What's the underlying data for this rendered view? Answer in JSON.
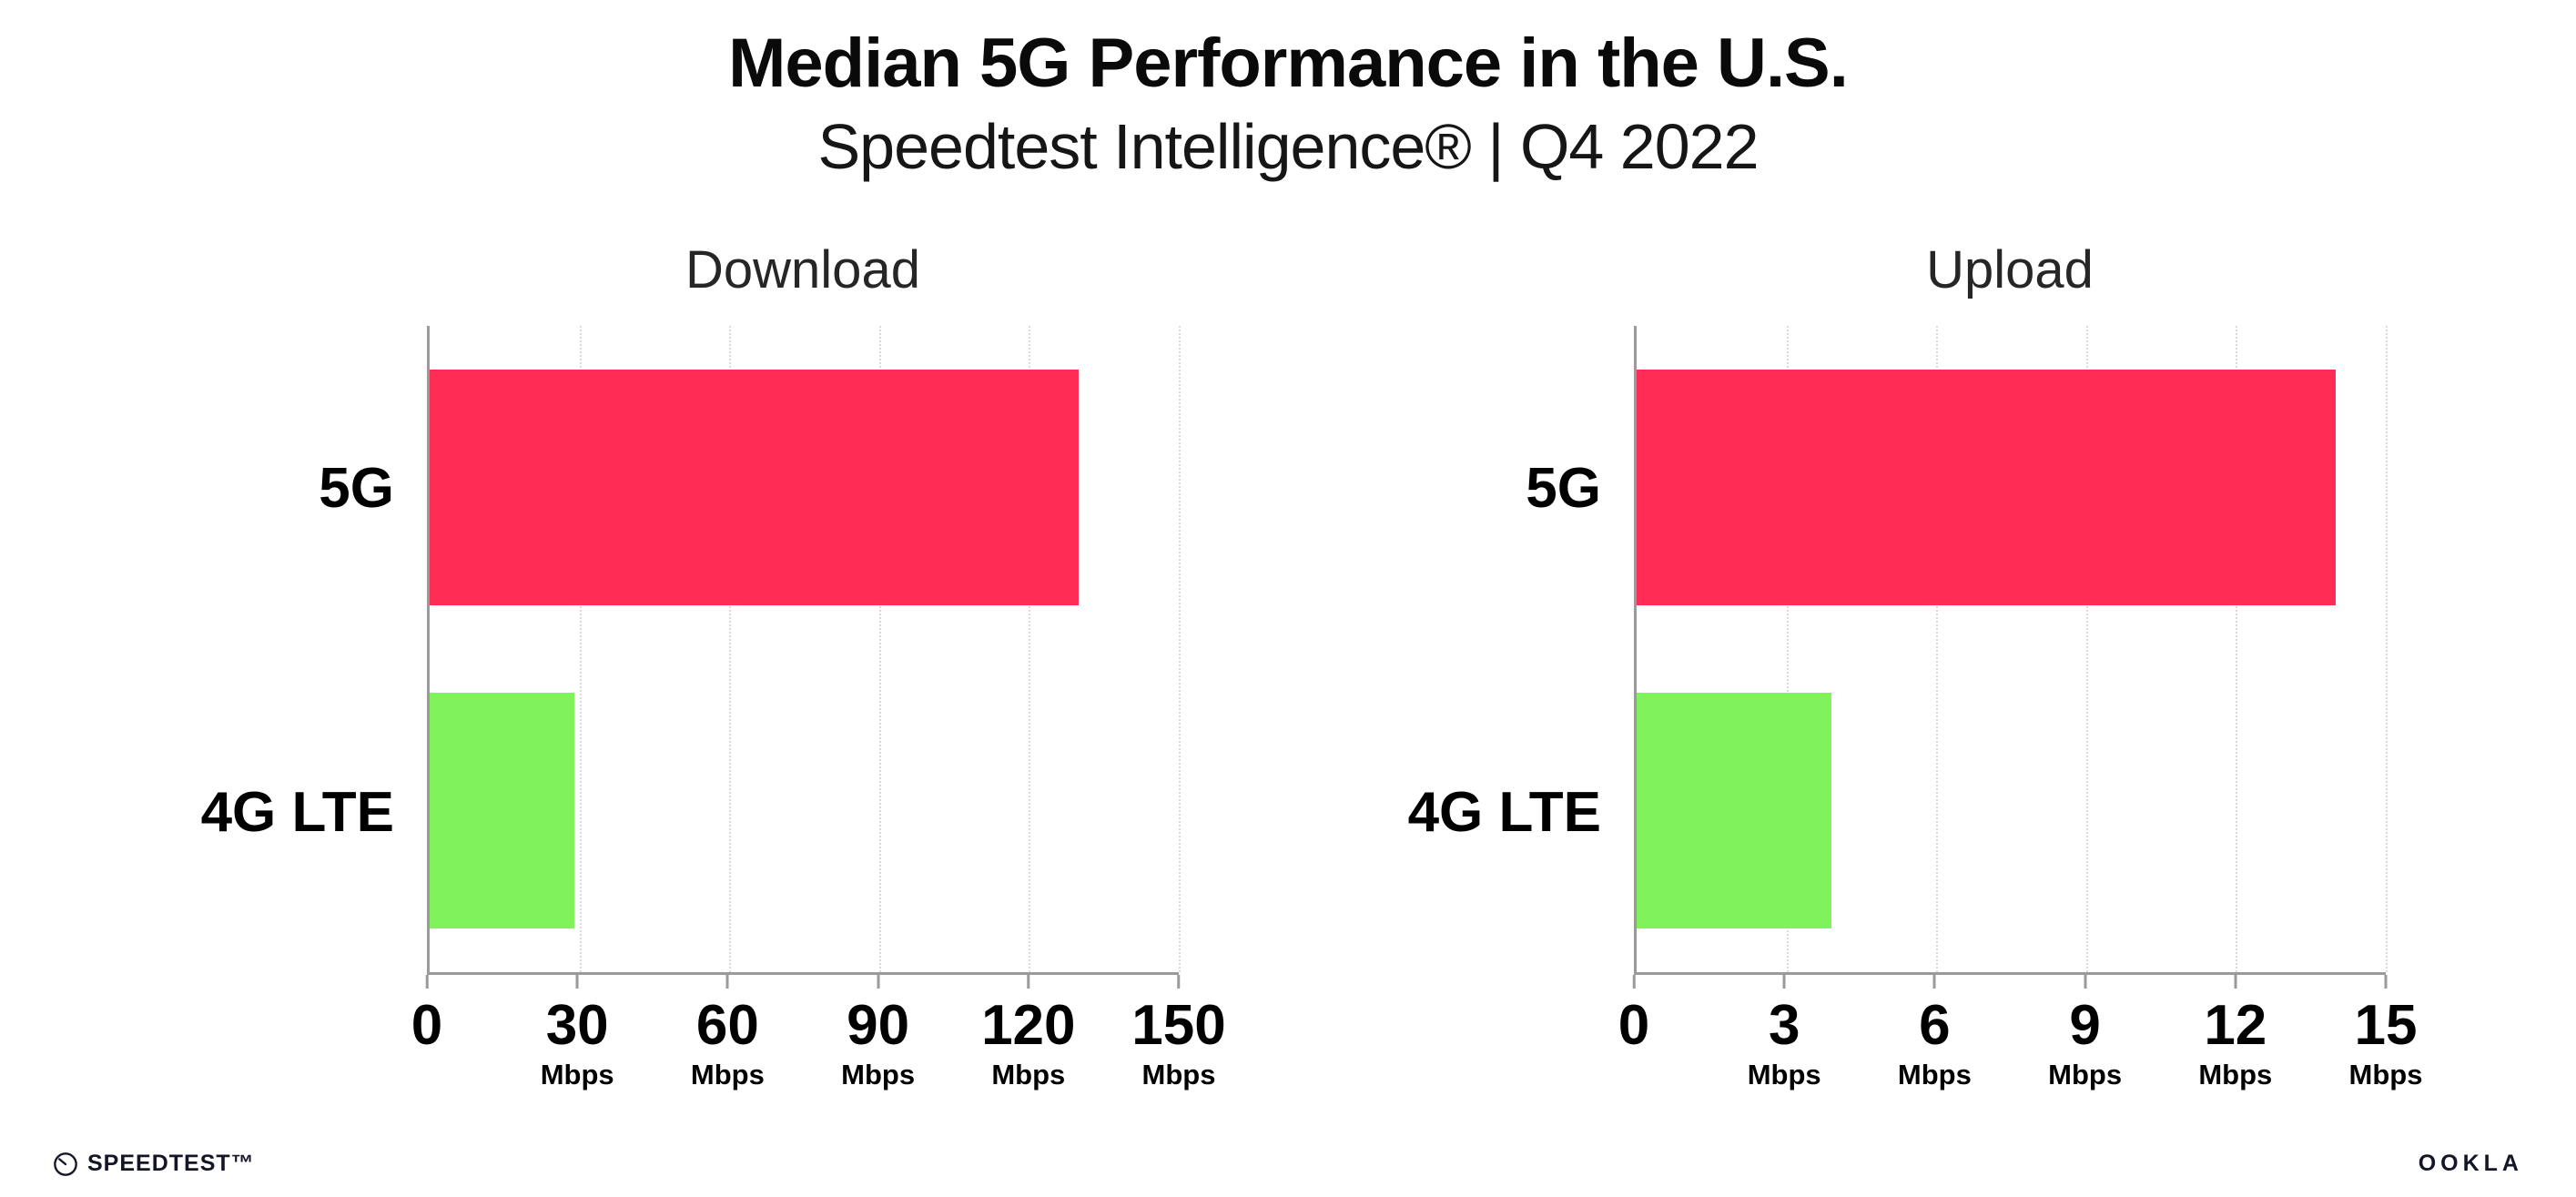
{
  "header": {
    "title": "Median 5G Performance in the U.S.",
    "subtitle": "Speedtest Intelligence® | Q4 2022"
  },
  "colors": {
    "bar_5g": "#ff2d55",
    "bar_4g": "#80f25c",
    "gridline": "#dadada",
    "axis": "#9a9a9a"
  },
  "chart_data": [
    {
      "type": "bar",
      "orientation": "horizontal",
      "title": "Download",
      "categories": [
        "5G",
        "4G LTE"
      ],
      "values": [
        130,
        29
      ],
      "unit": "Mbps",
      "xlabel": "",
      "ylabel": "",
      "xlim": [
        0,
        150
      ],
      "xticks": [
        0,
        30,
        60,
        90,
        120,
        150
      ],
      "grid": true,
      "legend": "none"
    },
    {
      "type": "bar",
      "orientation": "horizontal",
      "title": "Upload",
      "categories": [
        "5G",
        "4G LTE"
      ],
      "values": [
        14,
        3.9
      ],
      "unit": "Mbps",
      "xlabel": "",
      "ylabel": "",
      "xlim": [
        0,
        15
      ],
      "xticks": [
        0,
        3,
        6,
        9,
        12,
        15
      ],
      "grid": true,
      "legend": "none"
    }
  ],
  "footer": {
    "speedtest_label": "SPEEDTEST™",
    "ookla_label": "OOKLA"
  }
}
